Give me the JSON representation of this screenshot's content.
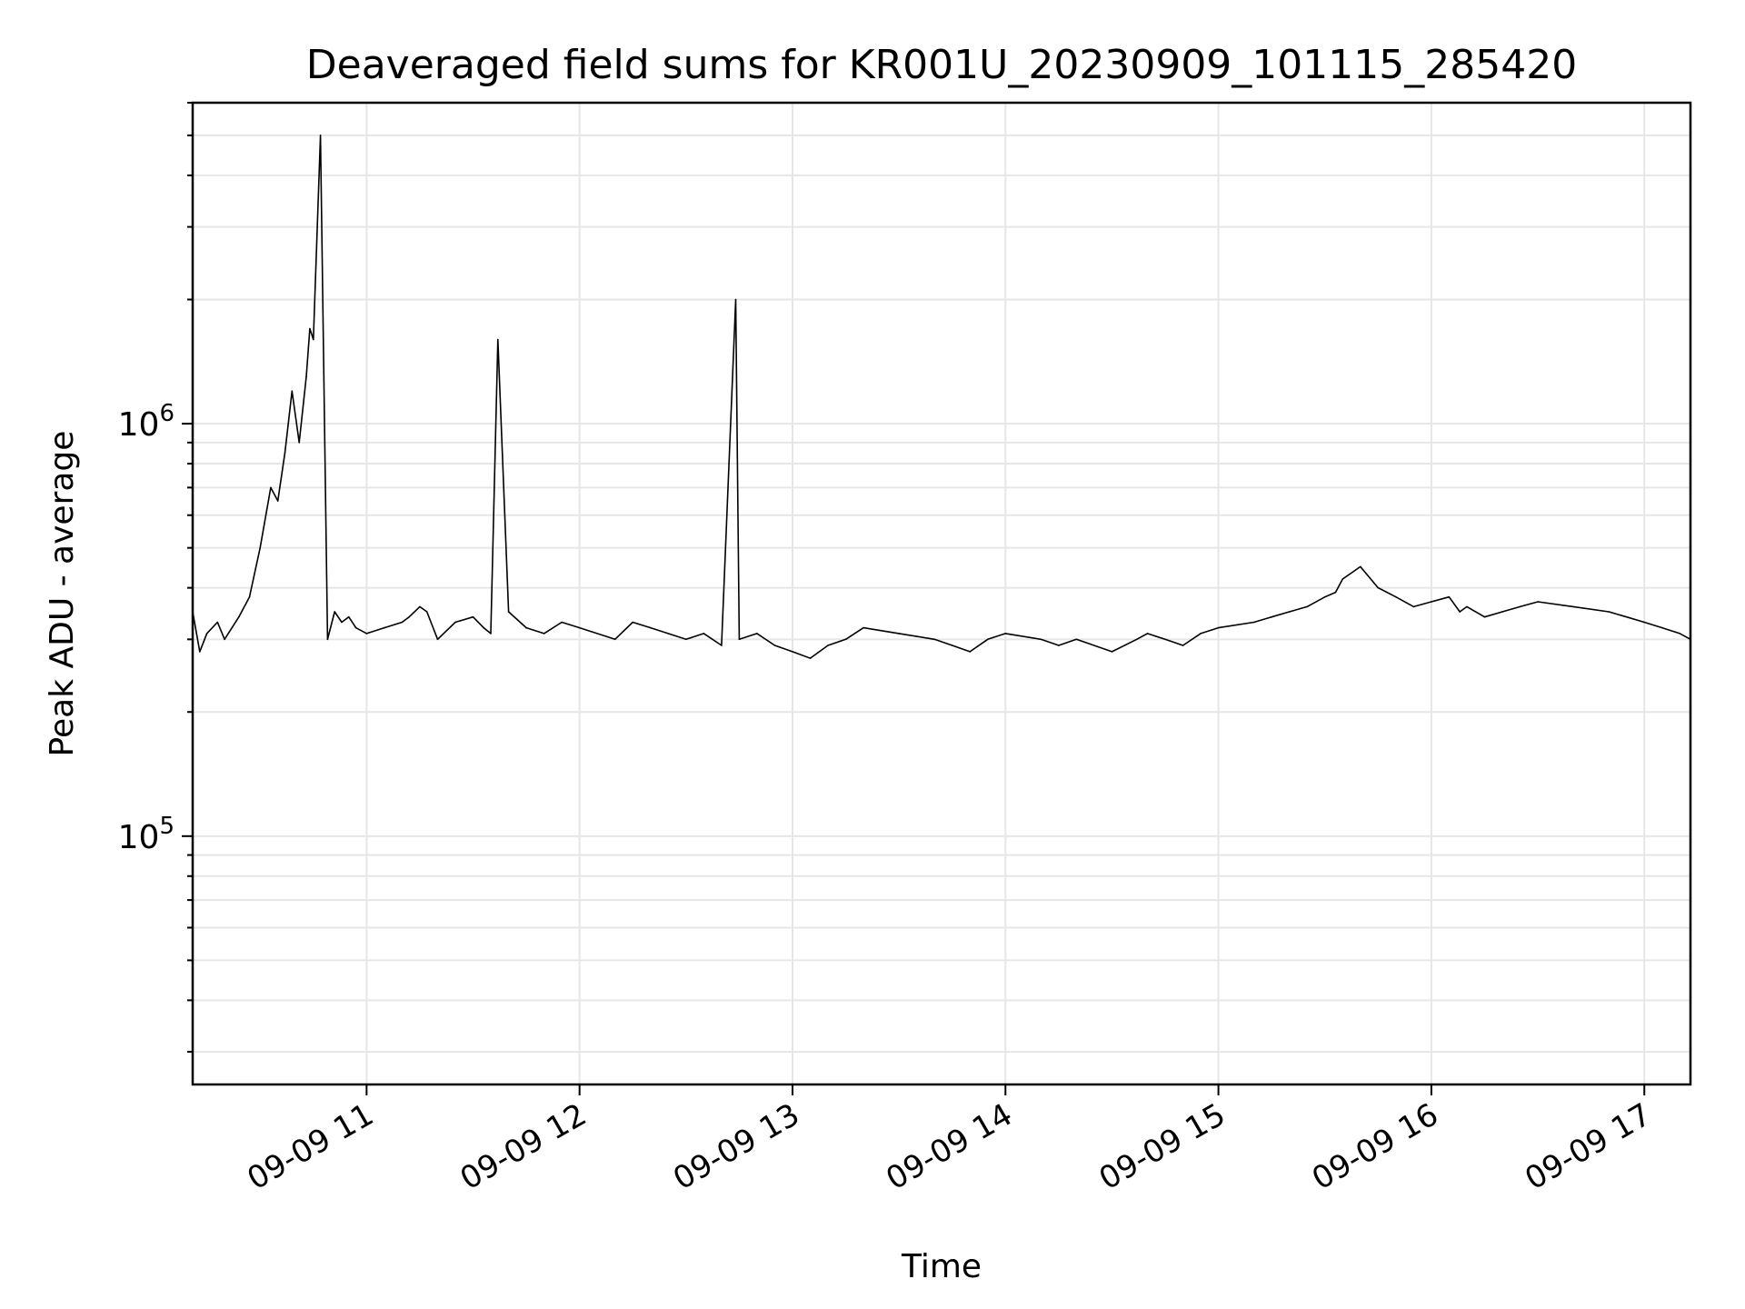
{
  "chart_data": {
    "type": "line",
    "title": "Deaveraged field sums for KR001U_20230909_101115_285420",
    "xlabel": "Time",
    "ylabel": "Peak ADU - average",
    "yscale": "log",
    "ylim": [
      25000,
      6000000
    ],
    "xlim": [
      "2023-09-09 10:11",
      "2023-09-09 17:13"
    ],
    "grid": true,
    "line_color": "#000000",
    "grid_color": "#e6e6e6",
    "x_ticks": [
      {
        "t": "2023-09-09 11:00",
        "label": "09-09 11"
      },
      {
        "t": "2023-09-09 12:00",
        "label": "09-09 12"
      },
      {
        "t": "2023-09-09 13:00",
        "label": "09-09 13"
      },
      {
        "t": "2023-09-09 14:00",
        "label": "09-09 14"
      },
      {
        "t": "2023-09-09 15:00",
        "label": "09-09 15"
      },
      {
        "t": "2023-09-09 16:00",
        "label": "09-09 16"
      },
      {
        "t": "2023-09-09 17:00",
        "label": "09-09 17"
      }
    ],
    "y_ticks": [
      {
        "value": 100000,
        "base": "10",
        "exp": "5"
      },
      {
        "value": 1000000,
        "base": "10",
        "exp": "6"
      }
    ],
    "series": [
      {
        "x": [
          "2023-09-09 10:11",
          "2023-09-09 10:13",
          "2023-09-09 10:15",
          "2023-09-09 10:18",
          "2023-09-09 10:20",
          "2023-09-09 10:24",
          "2023-09-09 10:27",
          "2023-09-09 10:30",
          "2023-09-09 10:33",
          "2023-09-09 10:35",
          "2023-09-09 10:37",
          "2023-09-09 10:39",
          "2023-09-09 10:41",
          "2023-09-09 10:43",
          "2023-09-09 10:44",
          "2023-09-09 10:45",
          "2023-09-09 10:47",
          "2023-09-09 10:49",
          "2023-09-09 10:51",
          "2023-09-09 10:53",
          "2023-09-09 10:55",
          "2023-09-09 10:57",
          "2023-09-09 11:00",
          "2023-09-09 11:05",
          "2023-09-09 11:10",
          "2023-09-09 11:12",
          "2023-09-09 11:15",
          "2023-09-09 11:17",
          "2023-09-09 11:20",
          "2023-09-09 11:25",
          "2023-09-09 11:30",
          "2023-09-09 11:33",
          "2023-09-09 11:35",
          "2023-09-09 11:37",
          "2023-09-09 11:40",
          "2023-09-09 11:45",
          "2023-09-09 11:50",
          "2023-09-09 11:55",
          "2023-09-09 12:00",
          "2023-09-09 12:10",
          "2023-09-09 12:15",
          "2023-09-09 12:20",
          "2023-09-09 12:30",
          "2023-09-09 12:35",
          "2023-09-09 12:40",
          "2023-09-09 12:44",
          "2023-09-09 12:45",
          "2023-09-09 12:50",
          "2023-09-09 12:55",
          "2023-09-09 13:00",
          "2023-09-09 13:05",
          "2023-09-09 13:10",
          "2023-09-09 13:15",
          "2023-09-09 13:20",
          "2023-09-09 13:30",
          "2023-09-09 13:40",
          "2023-09-09 13:45",
          "2023-09-09 13:50",
          "2023-09-09 13:55",
          "2023-09-09 14:00",
          "2023-09-09 14:10",
          "2023-09-09 14:15",
          "2023-09-09 14:20",
          "2023-09-09 14:30",
          "2023-09-09 14:37",
          "2023-09-09 14:40",
          "2023-09-09 14:45",
          "2023-09-09 14:50",
          "2023-09-09 14:55",
          "2023-09-09 15:00",
          "2023-09-09 15:10",
          "2023-09-09 15:15",
          "2023-09-09 15:20",
          "2023-09-09 15:25",
          "2023-09-09 15:30",
          "2023-09-09 15:33",
          "2023-09-09 15:35",
          "2023-09-09 15:40",
          "2023-09-09 15:45",
          "2023-09-09 15:50",
          "2023-09-09 15:55",
          "2023-09-09 16:00",
          "2023-09-09 16:05",
          "2023-09-09 16:08",
          "2023-09-09 16:10",
          "2023-09-09 16:15",
          "2023-09-09 16:20",
          "2023-09-09 16:25",
          "2023-09-09 16:30",
          "2023-09-09 16:40",
          "2023-09-09 16:50",
          "2023-09-09 16:55",
          "2023-09-09 17:00",
          "2023-09-09 17:05",
          "2023-09-09 17:10",
          "2023-09-09 17:13"
        ],
        "y": [
          350000,
          280000,
          310000,
          330000,
          300000,
          340000,
          380000,
          500000,
          700000,
          650000,
          850000,
          1200000,
          900000,
          1300000,
          1700000,
          1600000,
          5000000,
          300000,
          350000,
          330000,
          340000,
          320000,
          310000,
          320000,
          330000,
          340000,
          360000,
          350000,
          300000,
          330000,
          340000,
          320000,
          310000,
          1600000,
          350000,
          320000,
          310000,
          330000,
          320000,
          300000,
          330000,
          320000,
          300000,
          310000,
          290000,
          2000000,
          300000,
          310000,
          290000,
          280000,
          270000,
          290000,
          300000,
          320000,
          310000,
          300000,
          290000,
          280000,
          300000,
          310000,
          300000,
          290000,
          300000,
          280000,
          300000,
          310000,
          300000,
          290000,
          310000,
          320000,
          330000,
          340000,
          350000,
          360000,
          380000,
          390000,
          420000,
          450000,
          400000,
          380000,
          360000,
          370000,
          380000,
          350000,
          360000,
          340000,
          350000,
          360000,
          370000,
          360000,
          350000,
          340000,
          330000,
          320000,
          310000,
          300000
        ]
      }
    ]
  }
}
